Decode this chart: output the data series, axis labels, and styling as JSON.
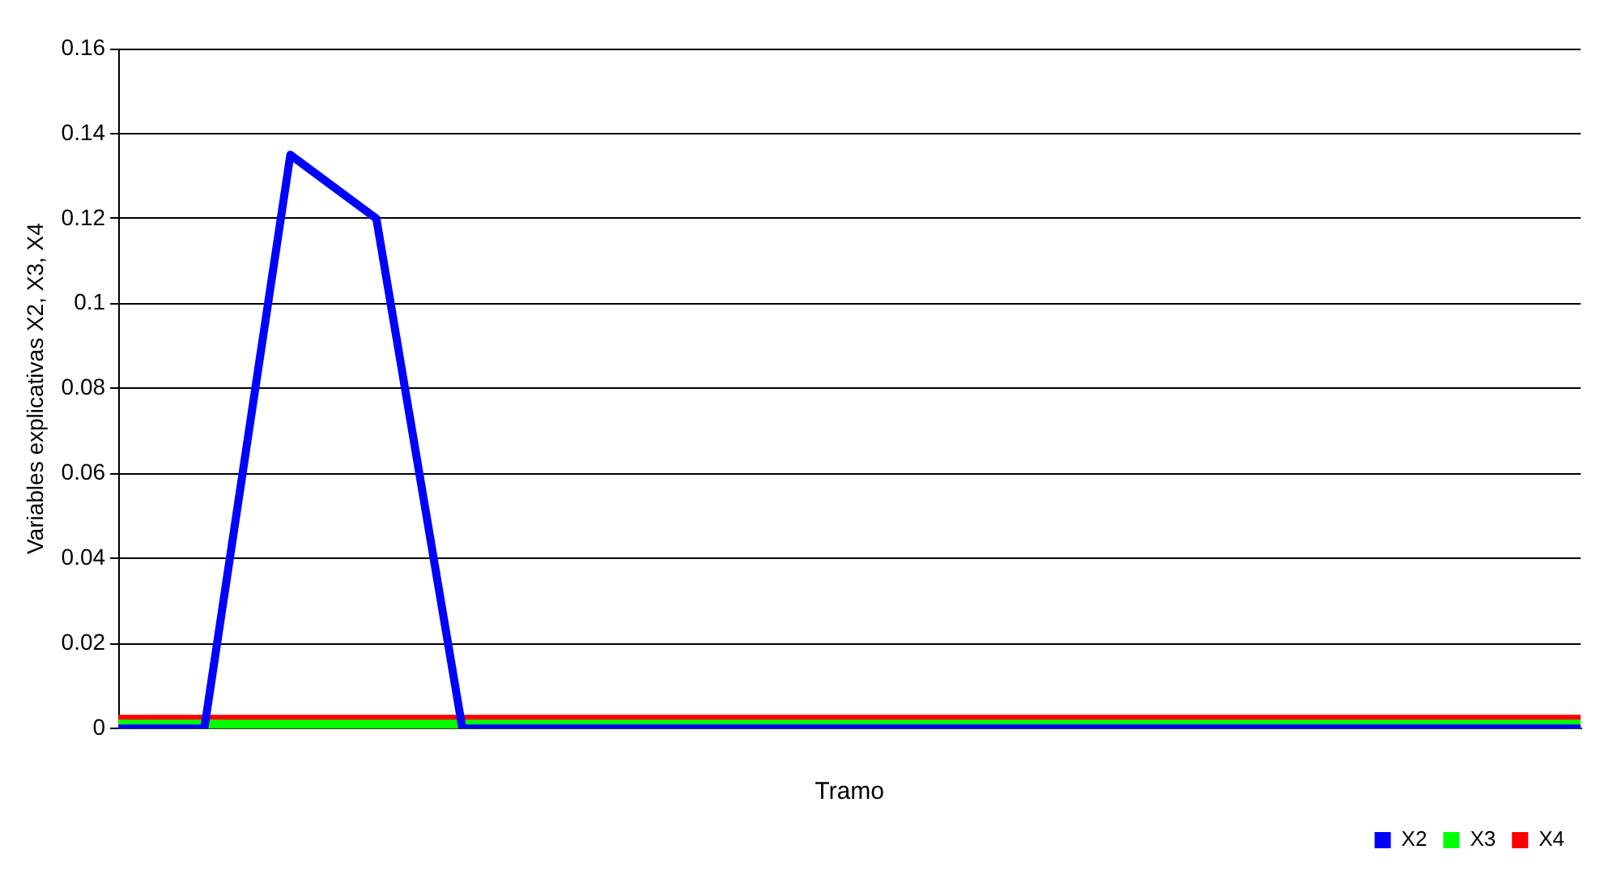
{
  "chart_data": {
    "type": "line",
    "xlabel": "Tramo",
    "ylabel": "Variables explicativas X2, X3, X4",
    "categories": [
      null,
      null,
      null,
      null,
      null,
      null,
      null,
      null,
      null,
      null,
      null,
      null,
      null,
      null,
      null,
      null,
      null,
      null
    ],
    "series": [
      {
        "name": "X2",
        "color": "#0000ff",
        "values": [
          0,
          0,
          0.135,
          0.12,
          0,
          0,
          0,
          0,
          0,
          0,
          0,
          0,
          0,
          0,
          0,
          0,
          0,
          0
        ]
      },
      {
        "name": "X3",
        "color": "#00ff00",
        "values": [
          0,
          0,
          0,
          0,
          0,
          0,
          0,
          0,
          0,
          0,
          0,
          0,
          0,
          0,
          0,
          0,
          0,
          0
        ]
      },
      {
        "name": "X4",
        "color": "#ff0000",
        "values": [
          0,
          0,
          0,
          0,
          0,
          0,
          0,
          0,
          0,
          0,
          0,
          0,
          0,
          0,
          0,
          0,
          0,
          0
        ]
      }
    ],
    "ylim": [
      0,
      0.16
    ],
    "yticks": [
      0,
      0.02,
      0.04,
      0.06,
      0.08,
      0.1,
      0.12,
      0.14,
      0.16
    ],
    "grid": "y",
    "legend": "bottom right",
    "marker": "none",
    "line_style": "solid"
  }
}
